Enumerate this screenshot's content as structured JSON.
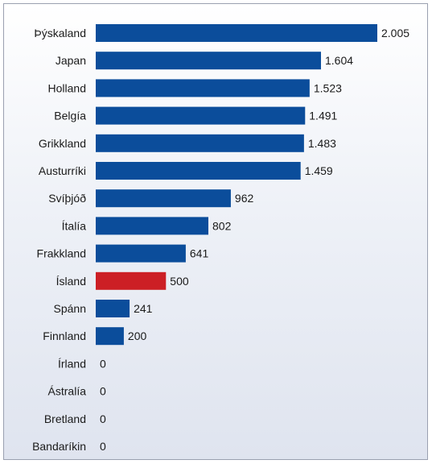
{
  "chart_data": {
    "type": "bar",
    "orientation": "horizontal",
    "categories": [
      "Þýskaland",
      "Japan",
      "Holland",
      "Belgía",
      "Grikkland",
      "Austurríki",
      "Svíþjóð",
      "Ítalía",
      "Frakkland",
      "Ísland",
      "Spánn",
      "Finnland",
      "Írland",
      "Ástralía",
      "Bretland",
      "Bandaríkin"
    ],
    "values": [
      2005,
      1604,
      1523,
      1491,
      1483,
      1459,
      962,
      802,
      641,
      500,
      241,
      200,
      0,
      0,
      0,
      0
    ],
    "value_labels": [
      "2.005",
      "1.604",
      "1.523",
      "1.491",
      "1.483",
      "1.459",
      "962",
      "802",
      "641",
      "500",
      "241",
      "200",
      "0",
      "0",
      "0",
      "0"
    ],
    "highlight_category": "Ísland",
    "colors": {
      "bar": "#0b4d9b",
      "highlight": "#cc1f25",
      "text": "#1a1a1a"
    },
    "xlim": [
      0,
      2005
    ],
    "grid": false,
    "legend": "none"
  }
}
